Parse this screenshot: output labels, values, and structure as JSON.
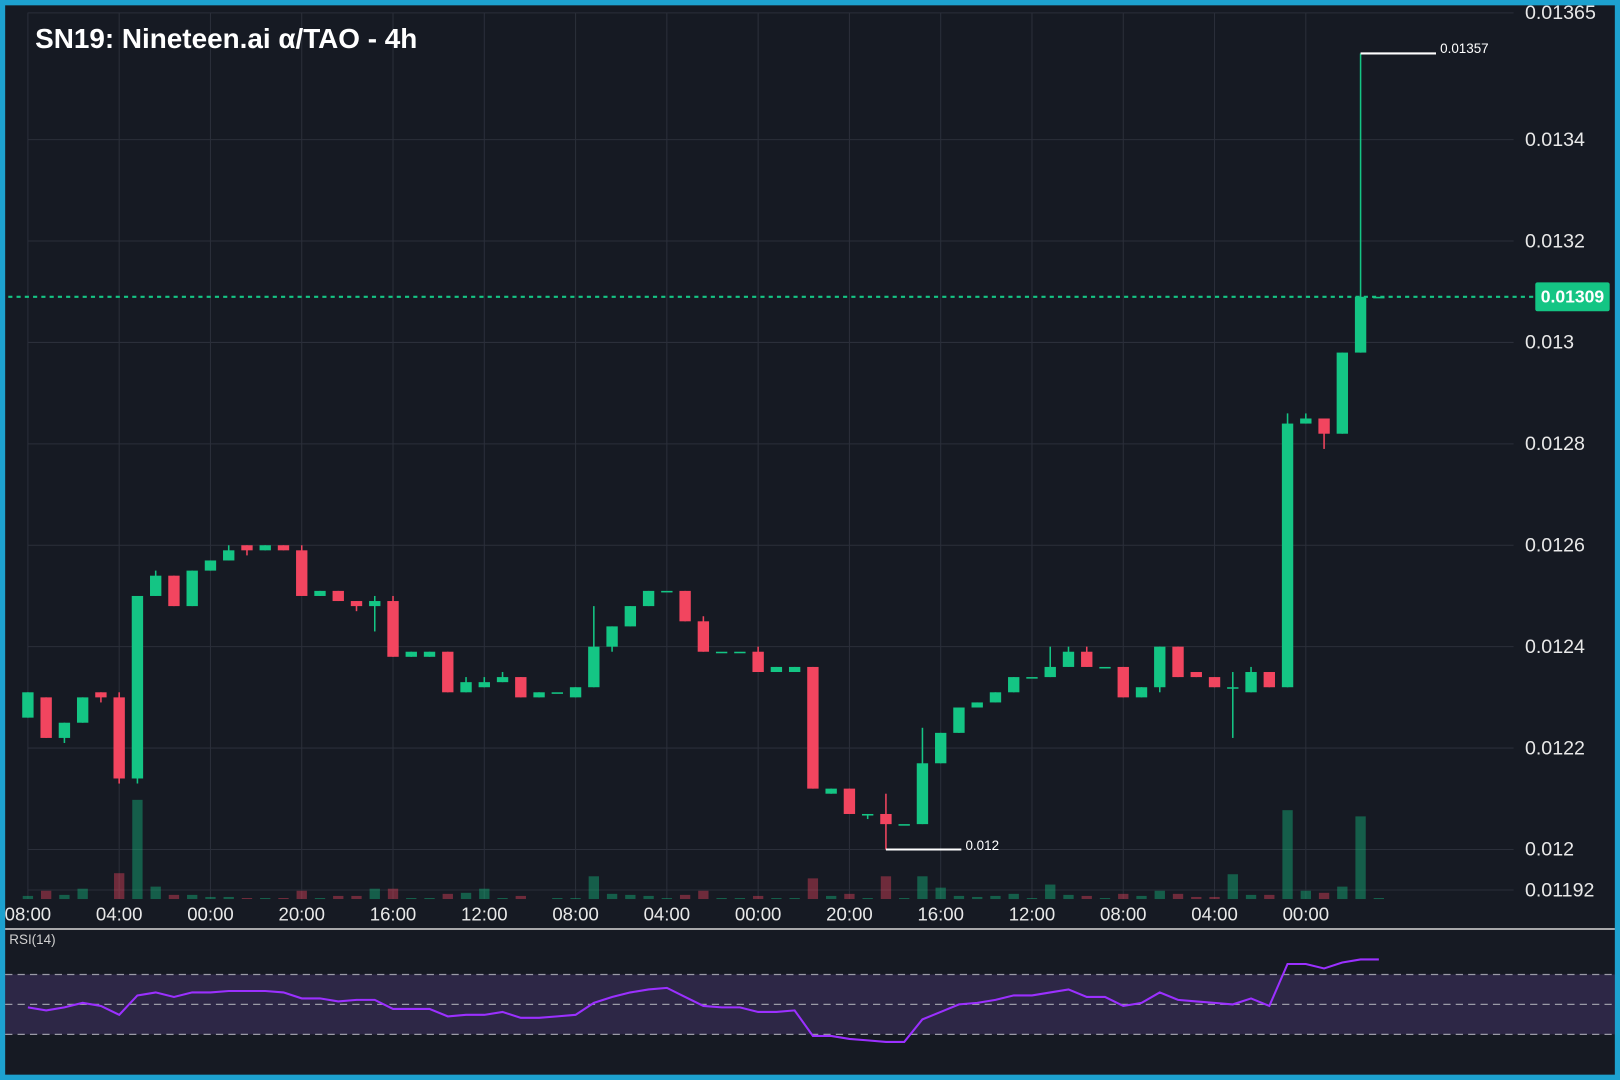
{
  "chart_data": [
    {
      "type": "candlestick",
      "title": "SN19: Nineteen.ai α/TAO - 4h",
      "categories": [
        "08:00",
        null,
        null,
        null,
        null,
        "04:00",
        null,
        null,
        null,
        null,
        "00:00",
        null,
        null,
        null,
        null,
        "20:00",
        null,
        null,
        null,
        null,
        "16:00",
        null,
        null,
        null,
        null,
        "12:00",
        null,
        null,
        null,
        null,
        "08:00",
        null,
        null,
        null,
        null,
        "04:00",
        null,
        null,
        null,
        null,
        "00:00",
        null,
        null,
        null,
        null,
        "20:00",
        null,
        null,
        null,
        null,
        "16:00",
        null,
        null,
        null,
        null,
        "12:00",
        null,
        null,
        null,
        null,
        "08:00",
        null,
        null,
        null,
        null,
        "04:00",
        null,
        null,
        null,
        null,
        "00:00",
        null,
        null,
        null,
        null
      ],
      "open": [
        0.01226,
        0.0123,
        0.01222,
        0.01225,
        0.01231,
        0.0123,
        0.01214,
        0.0125,
        0.01254,
        0.01248,
        0.01255,
        0.01257,
        0.0126,
        0.01259,
        0.0126,
        0.01259,
        0.0125,
        0.01251,
        0.01249,
        0.01248,
        0.01249,
        0.01238,
        0.01238,
        0.01239,
        0.01231,
        0.01232,
        0.01233,
        0.01234,
        0.0123,
        0.01231,
        0.0123,
        0.01232,
        0.0124,
        0.01244,
        0.01248,
        0.01251,
        0.01251,
        0.01245,
        0.01239,
        0.01239,
        0.01239,
        0.01235,
        0.01235,
        0.01236,
        0.01211,
        0.01212,
        0.01207,
        0.01207,
        0.01205,
        0.01205,
        0.01217,
        0.01223,
        0.01228,
        0.01229,
        0.01231,
        0.01234,
        0.01234,
        0.01236,
        0.01239,
        0.01236,
        0.01236,
        0.0123,
        0.01232,
        0.0124,
        0.01235,
        0.01234,
        0.01232,
        0.01231,
        0.01235,
        0.01232,
        0.01284,
        0.01285,
        0.01282,
        0.01298,
        0.01309
      ],
      "high": [
        0.01231,
        0.0123,
        0.01225,
        0.0123,
        0.01231,
        0.01231,
        0.0125,
        0.01255,
        0.01254,
        0.01255,
        0.01257,
        0.0126,
        0.0126,
        0.0126,
        0.0126,
        0.0126,
        0.01251,
        0.01251,
        0.01249,
        0.0125,
        0.0125,
        0.01239,
        0.01239,
        0.01239,
        0.01234,
        0.01234,
        0.01235,
        0.01234,
        0.01231,
        0.01231,
        0.01232,
        0.01248,
        0.01244,
        0.01248,
        0.01251,
        0.01251,
        0.01251,
        0.01246,
        0.01239,
        0.01239,
        0.0124,
        0.01236,
        0.01236,
        0.01236,
        0.01212,
        0.01212,
        0.01207,
        0.01211,
        0.01205,
        0.01224,
        0.01223,
        0.01228,
        0.01229,
        0.01231,
        0.01234,
        0.01234,
        0.0124,
        0.0124,
        0.0124,
        0.01236,
        0.01236,
        0.01232,
        0.0124,
        0.0124,
        0.01235,
        0.01234,
        0.01235,
        0.01236,
        0.01235,
        0.01286,
        0.01286,
        0.01285,
        0.01298,
        0.01357,
        0.01309
      ],
      "low": [
        0.01226,
        0.01222,
        0.01221,
        0.01225,
        0.01229,
        0.01213,
        0.01213,
        0.0125,
        0.01248,
        0.01248,
        0.01255,
        0.01257,
        0.01258,
        0.01259,
        0.01259,
        0.0125,
        0.0125,
        0.01249,
        0.01247,
        0.01243,
        0.01238,
        0.01238,
        0.01238,
        0.01231,
        0.01231,
        0.01232,
        0.01233,
        0.0123,
        0.0123,
        0.01231,
        0.0123,
        0.01232,
        0.01239,
        0.01244,
        0.01248,
        0.01251,
        0.01245,
        0.01239,
        0.01239,
        0.01239,
        0.01235,
        0.01235,
        0.01235,
        0.01212,
        0.01211,
        0.01207,
        0.01206,
        0.012,
        0.01205,
        0.01205,
        0.01217,
        0.01223,
        0.01228,
        0.01229,
        0.01231,
        0.01234,
        0.01234,
        0.01236,
        0.01236,
        0.01236,
        0.0123,
        0.0123,
        0.01231,
        0.01234,
        0.01234,
        0.01232,
        0.01222,
        0.01231,
        0.01232,
        0.01232,
        0.01284,
        0.01279,
        0.01282,
        0.01298,
        0.01309
      ],
      "close": [
        0.01231,
        0.01222,
        0.01225,
        0.0123,
        0.0123,
        0.01214,
        0.0125,
        0.01254,
        0.01248,
        0.01255,
        0.01257,
        0.01259,
        0.01259,
        0.0126,
        0.01259,
        0.0125,
        0.01251,
        0.01249,
        0.01248,
        0.01249,
        0.01238,
        0.01239,
        0.01239,
        0.01231,
        0.01233,
        0.01233,
        0.01234,
        0.0123,
        0.01231,
        0.01231,
        0.01232,
        0.0124,
        0.01244,
        0.01248,
        0.01251,
        0.01251,
        0.01245,
        0.01239,
        0.01239,
        0.01239,
        0.01235,
        0.01236,
        0.01236,
        0.01212,
        0.01212,
        0.01207,
        0.01207,
        0.01205,
        0.01205,
        0.01217,
        0.01223,
        0.01228,
        0.01229,
        0.01231,
        0.01234,
        0.01234,
        0.01236,
        0.01239,
        0.01236,
        0.01236,
        0.0123,
        0.01232,
        0.0124,
        0.01234,
        0.01234,
        0.01232,
        0.01232,
        0.01235,
        0.01232,
        0.01284,
        0.01285,
        0.01282,
        0.01298,
        0.01309,
        0.01309
      ],
      "volume": [
        3,
        8,
        4,
        10,
        0,
        25,
        96,
        12,
        4,
        4,
        2,
        2,
        1,
        1,
        1,
        8,
        1,
        3,
        3,
        10,
        10,
        1,
        1,
        5,
        6,
        10,
        1,
        3,
        0,
        1,
        1,
        22,
        5,
        4,
        3,
        1,
        4,
        8,
        1,
        1,
        3,
        1,
        1,
        20,
        3,
        5,
        1,
        22,
        1,
        22,
        11,
        3,
        2,
        3,
        5,
        1,
        14,
        4,
        3,
        1,
        5,
        3,
        8,
        5,
        2,
        2,
        24,
        4,
        4,
        86,
        8,
        6,
        12,
        80,
        1
      ],
      "up_color": "#14c584",
      "down_color": "#f2455f",
      "ylim": [
        0.01192,
        0.01365
      ],
      "yticks": [
        0.01192,
        0.012,
        0.0122,
        0.0124,
        0.0126,
        0.0128,
        0.013,
        0.0132,
        0.0134,
        0.01365
      ],
      "grid": true,
      "last_price": 0.01309,
      "high_label": 0.01357,
      "low_label": 0.012
    },
    {
      "type": "line",
      "title": "RSI(14)",
      "color": "#9b30ff",
      "values": [
        48,
        46,
        48,
        51,
        49,
        43,
        56,
        58,
        55,
        58,
        58,
        59,
        59,
        59,
        58,
        54,
        54,
        52,
        53,
        53,
        47,
        47,
        47,
        42,
        43,
        43,
        45,
        41,
        41,
        42,
        43,
        51,
        55,
        58,
        60,
        61,
        55,
        49,
        48,
        48,
        45,
        45,
        46,
        29,
        29,
        27,
        26,
        25,
        25,
        40,
        45,
        50,
        51,
        53,
        56,
        56,
        58,
        60,
        55,
        55,
        49,
        51,
        58,
        53,
        52,
        51,
        50,
        54,
        49,
        77,
        77,
        74,
        78,
        80,
        80
      ],
      "ylim": [
        0,
        100
      ],
      "levels": [
        30,
        50,
        70
      ]
    }
  ]
}
